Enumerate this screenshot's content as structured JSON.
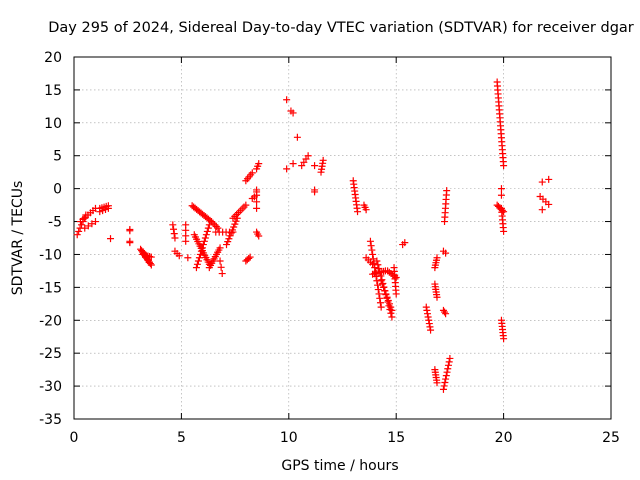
{
  "chart_data": {
    "type": "scatter",
    "title": "Day 295 of 2024, Sidereal Day-to-day VTEC variation (SDTVAR) for receiver dgar",
    "xlabel": "GPS time / hours",
    "ylabel": "SDTVAR / TECUs",
    "xlim": [
      0,
      25
    ],
    "ylim": [
      -35,
      20
    ],
    "xticks": [
      0,
      5,
      10,
      15,
      20,
      25
    ],
    "yticks": [
      -35,
      -30,
      -25,
      -20,
      -15,
      -10,
      -5,
      0,
      5,
      10,
      15,
      20
    ],
    "grid": true,
    "marker": "+",
    "color": "#ff0000",
    "segments": [
      {
        "x0": 0.15,
        "y0": -7.0,
        "x1": 0.55,
        "y1": -4.0,
        "n": 7
      },
      {
        "x0": 0.3,
        "y0": -5.0,
        "x1": 1.0,
        "y1": -3.0,
        "n": 7
      },
      {
        "x0": 0.5,
        "y0": -6.0,
        "x1": 1.0,
        "y1": -5.0,
        "n": 4
      },
      {
        "x0": 1.2,
        "y0": -3.0,
        "x1": 1.6,
        "y1": -2.6,
        "n": 5
      },
      {
        "x0": 1.2,
        "y0": -3.5,
        "x1": 1.6,
        "y1": -3.0,
        "n": 4
      },
      {
        "x0": 1.7,
        "y0": -7.6,
        "x1": 1.7,
        "y1": -7.6,
        "n": 1
      },
      {
        "x0": 2.6,
        "y0": -6.2,
        "x1": 2.6,
        "y1": -6.4,
        "n": 2
      },
      {
        "x0": 2.6,
        "y0": -8.0,
        "x1": 2.6,
        "y1": -8.2,
        "n": 2
      },
      {
        "x0": 3.1,
        "y0": -9.2,
        "x1": 3.6,
        "y1": -11.6,
        "n": 12
      },
      {
        "x0": 3.2,
        "y0": -10.0,
        "x1": 3.6,
        "y1": -10.4,
        "n": 6
      },
      {
        "x0": 3.2,
        "y0": -9.6,
        "x1": 3.5,
        "y1": -11.2,
        "n": 6
      },
      {
        "x0": 4.6,
        "y0": -5.5,
        "x1": 4.7,
        "y1": -7.5,
        "n": 4
      },
      {
        "x0": 4.7,
        "y0": -9.5,
        "x1": 4.9,
        "y1": -10.2,
        "n": 3
      },
      {
        "x0": 5.2,
        "y0": -5.5,
        "x1": 5.2,
        "y1": -8.0,
        "n": 4
      },
      {
        "x0": 5.3,
        "y0": -10.5,
        "x1": 5.3,
        "y1": -10.5,
        "n": 1
      },
      {
        "x0": 5.5,
        "y0": -2.6,
        "x1": 6.4,
        "y1": -5.0,
        "n": 14
      },
      {
        "x0": 5.6,
        "y0": -7.0,
        "x1": 6.3,
        "y1": -11.5,
        "n": 14
      },
      {
        "x0": 5.7,
        "y0": -12.0,
        "x1": 6.3,
        "y1": -5.5,
        "n": 14
      },
      {
        "x0": 6.3,
        "y0": -12.0,
        "x1": 6.8,
        "y1": -9.0,
        "n": 10
      },
      {
        "x0": 6.4,
        "y0": -5.0,
        "x1": 6.7,
        "y1": -6.0,
        "n": 5
      },
      {
        "x0": 6.6,
        "y0": -6.6,
        "x1": 7.4,
        "y1": -6.6,
        "n": 6
      },
      {
        "x0": 6.8,
        "y0": -11.0,
        "x1": 6.9,
        "y1": -12.9,
        "n": 3
      },
      {
        "x0": 7.1,
        "y0": -8.5,
        "x1": 7.6,
        "y1": -4.5,
        "n": 10
      },
      {
        "x0": 7.4,
        "y0": -4.5,
        "x1": 8.0,
        "y1": -2.5,
        "n": 8
      },
      {
        "x0": 8.0,
        "y0": 1.2,
        "x1": 8.3,
        "y1": 2.4,
        "n": 5
      },
      {
        "x0": 8.0,
        "y0": -11.0,
        "x1": 8.2,
        "y1": -10.4,
        "n": 4
      },
      {
        "x0": 8.3,
        "y0": -1.5,
        "x1": 8.5,
        "y1": -1.0,
        "n": 3
      },
      {
        "x0": 8.5,
        "y0": -0.2,
        "x1": 8.5,
        "y1": -0.5,
        "n": 2
      },
      {
        "x0": 8.5,
        "y0": 3.0,
        "x1": 8.6,
        "y1": 3.8,
        "n": 3
      },
      {
        "x0": 8.5,
        "y0": -2.0,
        "x1": 8.5,
        "y1": -3.0,
        "n": 2
      },
      {
        "x0": 8.5,
        "y0": -6.6,
        "x1": 8.6,
        "y1": -7.2,
        "n": 3
      },
      {
        "x0": 9.9,
        "y0": 13.5,
        "x1": 9.9,
        "y1": 13.5,
        "n": 1
      },
      {
        "x0": 10.1,
        "y0": 11.8,
        "x1": 10.2,
        "y1": 11.5,
        "n": 2
      },
      {
        "x0": 9.9,
        "y0": 3.0,
        "x1": 9.9,
        "y1": 3.0,
        "n": 1
      },
      {
        "x0": 10.2,
        "y0": 3.8,
        "x1": 10.2,
        "y1": 3.8,
        "n": 1
      },
      {
        "x0": 10.4,
        "y0": 7.8,
        "x1": 10.4,
        "y1": 7.8,
        "n": 1
      },
      {
        "x0": 10.6,
        "y0": 3.5,
        "x1": 10.9,
        "y1": 5.0,
        "n": 4
      },
      {
        "x0": 11.2,
        "y0": 3.5,
        "x1": 11.2,
        "y1": 3.5,
        "n": 1
      },
      {
        "x0": 11.2,
        "y0": -0.2,
        "x1": 11.2,
        "y1": -0.5,
        "n": 2
      },
      {
        "x0": 11.5,
        "y0": 2.5,
        "x1": 11.6,
        "y1": 4.3,
        "n": 5
      },
      {
        "x0": 13.0,
        "y0": 1.2,
        "x1": 13.2,
        "y1": -3.5,
        "n": 10
      },
      {
        "x0": 13.5,
        "y0": -2.5,
        "x1": 13.6,
        "y1": -3.2,
        "n": 3
      },
      {
        "x0": 13.8,
        "y0": -8.0,
        "x1": 14.3,
        "y1": -18.0,
        "n": 16
      },
      {
        "x0": 13.6,
        "y0": -10.5,
        "x1": 13.9,
        "y1": -11.5,
        "n": 4
      },
      {
        "x0": 13.9,
        "y0": -13.0,
        "x1": 14.5,
        "y1": -12.5,
        "n": 8
      },
      {
        "x0": 14.1,
        "y0": -11.0,
        "x1": 14.8,
        "y1": -19.5,
        "n": 16
      },
      {
        "x0": 14.3,
        "y0": -14.0,
        "x1": 14.8,
        "y1": -18.5,
        "n": 10
      },
      {
        "x0": 14.6,
        "y0": -12.5,
        "x1": 15.0,
        "y1": -13.5,
        "n": 6
      },
      {
        "x0": 14.9,
        "y0": -12.0,
        "x1": 15.0,
        "y1": -16.0,
        "n": 8
      },
      {
        "x0": 15.3,
        "y0": -8.5,
        "x1": 15.4,
        "y1": -8.2,
        "n": 2
      },
      {
        "x0": 16.4,
        "y0": -18.0,
        "x1": 16.6,
        "y1": -21.5,
        "n": 8
      },
      {
        "x0": 16.8,
        "y0": -12.0,
        "x1": 16.9,
        "y1": -10.5,
        "n": 5
      },
      {
        "x0": 16.8,
        "y0": -14.5,
        "x1": 16.9,
        "y1": -16.5,
        "n": 6
      },
      {
        "x0": 16.8,
        "y0": -27.5,
        "x1": 16.9,
        "y1": -29.5,
        "n": 6
      },
      {
        "x0": 17.2,
        "y0": -9.5,
        "x1": 17.3,
        "y1": -9.8,
        "n": 2
      },
      {
        "x0": 17.2,
        "y0": -18.5,
        "x1": 17.3,
        "y1": -19.0,
        "n": 3
      },
      {
        "x0": 17.25,
        "y0": -5.0,
        "x1": 17.35,
        "y1": -0.3,
        "n": 8
      },
      {
        "x0": 17.2,
        "y0": -30.5,
        "x1": 17.5,
        "y1": -25.8,
        "n": 10
      },
      {
        "x0": 19.7,
        "y0": 16.2,
        "x1": 20.0,
        "y1": 3.5,
        "n": 22
      },
      {
        "x0": 19.7,
        "y0": -2.5,
        "x1": 20.0,
        "y1": -3.5,
        "n": 6
      },
      {
        "x0": 19.9,
        "y0": 0.0,
        "x1": 19.9,
        "y1": -1.0,
        "n": 2
      },
      {
        "x0": 19.9,
        "y0": -3.0,
        "x1": 20.0,
        "y1": -6.5,
        "n": 7
      },
      {
        "x0": 19.9,
        "y0": -20.0,
        "x1": 20.0,
        "y1": -22.8,
        "n": 7
      },
      {
        "x0": 21.8,
        "y0": 1.0,
        "x1": 22.1,
        "y1": 1.4,
        "n": 2
      },
      {
        "x0": 21.7,
        "y0": -1.2,
        "x1": 22.1,
        "y1": -2.4,
        "n": 4
      },
      {
        "x0": 21.8,
        "y0": -3.2,
        "x1": 21.8,
        "y1": -3.2,
        "n": 1
      }
    ]
  }
}
